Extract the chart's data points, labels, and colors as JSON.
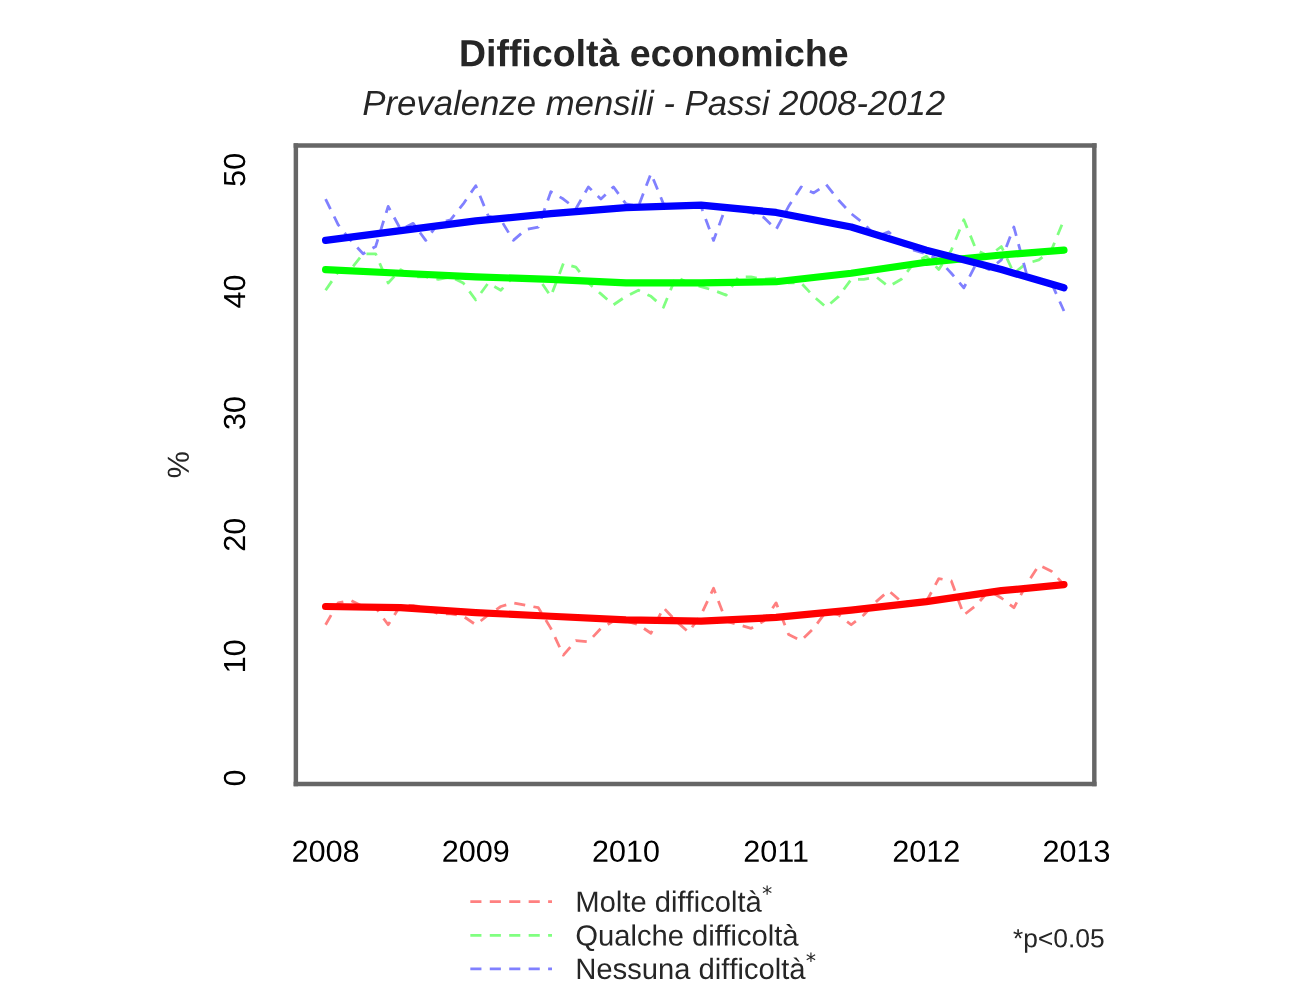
{
  "chart_data": {
    "type": "line",
    "title": "Difficoltà economiche",
    "subtitle": "Prevalenze mensili - Passi 2008-2012",
    "ylabel": "%",
    "x": [
      "2008-01",
      "2008-02",
      "2008-03",
      "2008-04",
      "2008-05",
      "2008-06",
      "2008-07",
      "2008-08",
      "2008-09",
      "2008-10",
      "2008-11",
      "2008-12",
      "2009-01",
      "2009-02",
      "2009-03",
      "2009-04",
      "2009-05",
      "2009-06",
      "2009-07",
      "2009-08",
      "2009-09",
      "2009-10",
      "2009-11",
      "2009-12",
      "2010-01",
      "2010-02",
      "2010-03",
      "2010-04",
      "2010-05",
      "2010-06",
      "2010-07",
      "2010-08",
      "2010-09",
      "2010-10",
      "2010-11",
      "2010-12",
      "2011-01",
      "2011-02",
      "2011-03",
      "2011-04",
      "2011-05",
      "2011-06",
      "2011-07",
      "2011-08",
      "2011-09",
      "2011-10",
      "2011-11",
      "2011-12",
      "2012-01",
      "2012-02",
      "2012-03",
      "2012-04",
      "2012-05",
      "2012-06",
      "2012-07",
      "2012-08",
      "2012-09",
      "2012-10",
      "2012-11",
      "2012-12"
    ],
    "series": [
      {
        "name": "Molte difficoltà$^{*}$",
        "color": "#ff8080",
        "line_style": "dashed",
        "values": [
          12.6,
          14.4,
          14.6,
          14.1,
          14.0,
          12.6,
          14.2,
          14.2,
          14.0,
          13.5,
          13.5,
          13.3,
          12.6,
          13.4,
          14.1,
          14.4,
          14.2,
          14.0,
          12.3,
          10.1,
          11.3,
          11.2,
          12.3,
          12.9,
          12.9,
          12.6,
          11.9,
          14.0,
          12.9,
          12.0,
          13.4,
          15.6,
          12.9,
          12.6,
          12.3,
          12.9,
          14.4,
          11.8,
          11.3,
          12.3,
          13.7,
          13.4,
          12.6,
          13.4,
          14.5,
          15.4,
          14.5,
          14.5,
          14.5,
          16.4,
          16.2,
          13.4,
          14.2,
          15.4,
          14.8,
          14.0,
          15.9,
          17.5,
          17.0,
          15.9
        ]
      },
      {
        "name": "Qualche difficoltà",
        "color": "#80ff80",
        "line_style": "dashed",
        "values": [
          40.1,
          41.6,
          41.8,
          43.1,
          43.1,
          40.7,
          41.8,
          41.2,
          41.2,
          41.0,
          41.2,
          40.7,
          39.3,
          40.7,
          40.1,
          41.2,
          41.0,
          41.1,
          39.6,
          42.3,
          42.0,
          40.7,
          39.8,
          38.9,
          39.6,
          40.1,
          39.6,
          38.7,
          41.2,
          40.7,
          40.4,
          40.1,
          39.7,
          41.2,
          41.2,
          41.0,
          41.1,
          40.7,
          40.7,
          39.6,
          38.7,
          39.6,
          41.0,
          41.0,
          41.2,
          40.4,
          41.0,
          42.3,
          42.9,
          41.8,
          43.4,
          45.9,
          43.4,
          42.9,
          43.7,
          41.5,
          42.3,
          42.6,
          43.4,
          45.9
        ]
      },
      {
        "name": "Nessuna difficoltà$^{*}$",
        "color": "#8080ff",
        "line_style": "dashed",
        "values": [
          47.6,
          45.5,
          44.2,
          43.1,
          43.7,
          47.0,
          45.1,
          45.6,
          44.2,
          45.6,
          45.9,
          47.2,
          48.7,
          46.2,
          45.9,
          44.2,
          45.1,
          45.3,
          48.2,
          47.6,
          46.8,
          48.6,
          47.6,
          48.6,
          47.2,
          47.0,
          49.7,
          47.2,
          47.0,
          47.0,
          47.0,
          44.2,
          47.0,
          46.7,
          46.5,
          46.1,
          45.1,
          47.0,
          48.6,
          48.1,
          48.8,
          47.5,
          46.4,
          45.6,
          44.5,
          44.9,
          43.9,
          43.4,
          43.1,
          42.6,
          41.5,
          40.3,
          42.3,
          41.8,
          42.6,
          45.3,
          41.5,
          40.9,
          40.7,
          38.4
        ]
      },
      {
        "color": "#ff0000",
        "line_style": "solid",
        "x": [
          "2008-01",
          "2008-07",
          "2009-01",
          "2009-07",
          "2010-01",
          "2010-07",
          "2011-01",
          "2011-07",
          "2012-01",
          "2012-07",
          "2012-12"
        ],
        "values": [
          14.1,
          14.0,
          13.6,
          13.3,
          13.0,
          12.9,
          13.2,
          13.8,
          14.5,
          15.4,
          15.9
        ]
      },
      {
        "color": "#00ff00",
        "line_style": "solid",
        "x": [
          "2008-01",
          "2008-07",
          "2009-01",
          "2009-07",
          "2010-01",
          "2010-07",
          "2011-01",
          "2011-07",
          "2012-01",
          "2012-07",
          "2012-12"
        ],
        "values": [
          41.8,
          41.5,
          41.2,
          41.0,
          40.7,
          40.7,
          40.8,
          41.5,
          42.4,
          43.0,
          43.4
        ]
      },
      {
        "color": "#0000ff",
        "line_style": "solid",
        "x": [
          "2008-01",
          "2008-07",
          "2009-01",
          "2009-07",
          "2010-01",
          "2010-07",
          "2011-01",
          "2011-07",
          "2012-01",
          "2012-07",
          "2012-12"
        ],
        "values": [
          44.2,
          45.0,
          45.8,
          46.4,
          46.9,
          47.1,
          46.5,
          45.3,
          43.4,
          41.8,
          40.3
        ]
      }
    ],
    "xlim": [
      "2007-10-20",
      "2013-02-14"
    ],
    "xticks": [
      "2008",
      "2009",
      "2010",
      "2011",
      "2012",
      "2013"
    ],
    "ylim": [
      -0.5,
      52
    ],
    "yticks": [
      0,
      10,
      20,
      30,
      40,
      50
    ],
    "legend": "bottom",
    "annotations": [
      "*p<0.05"
    ]
  }
}
